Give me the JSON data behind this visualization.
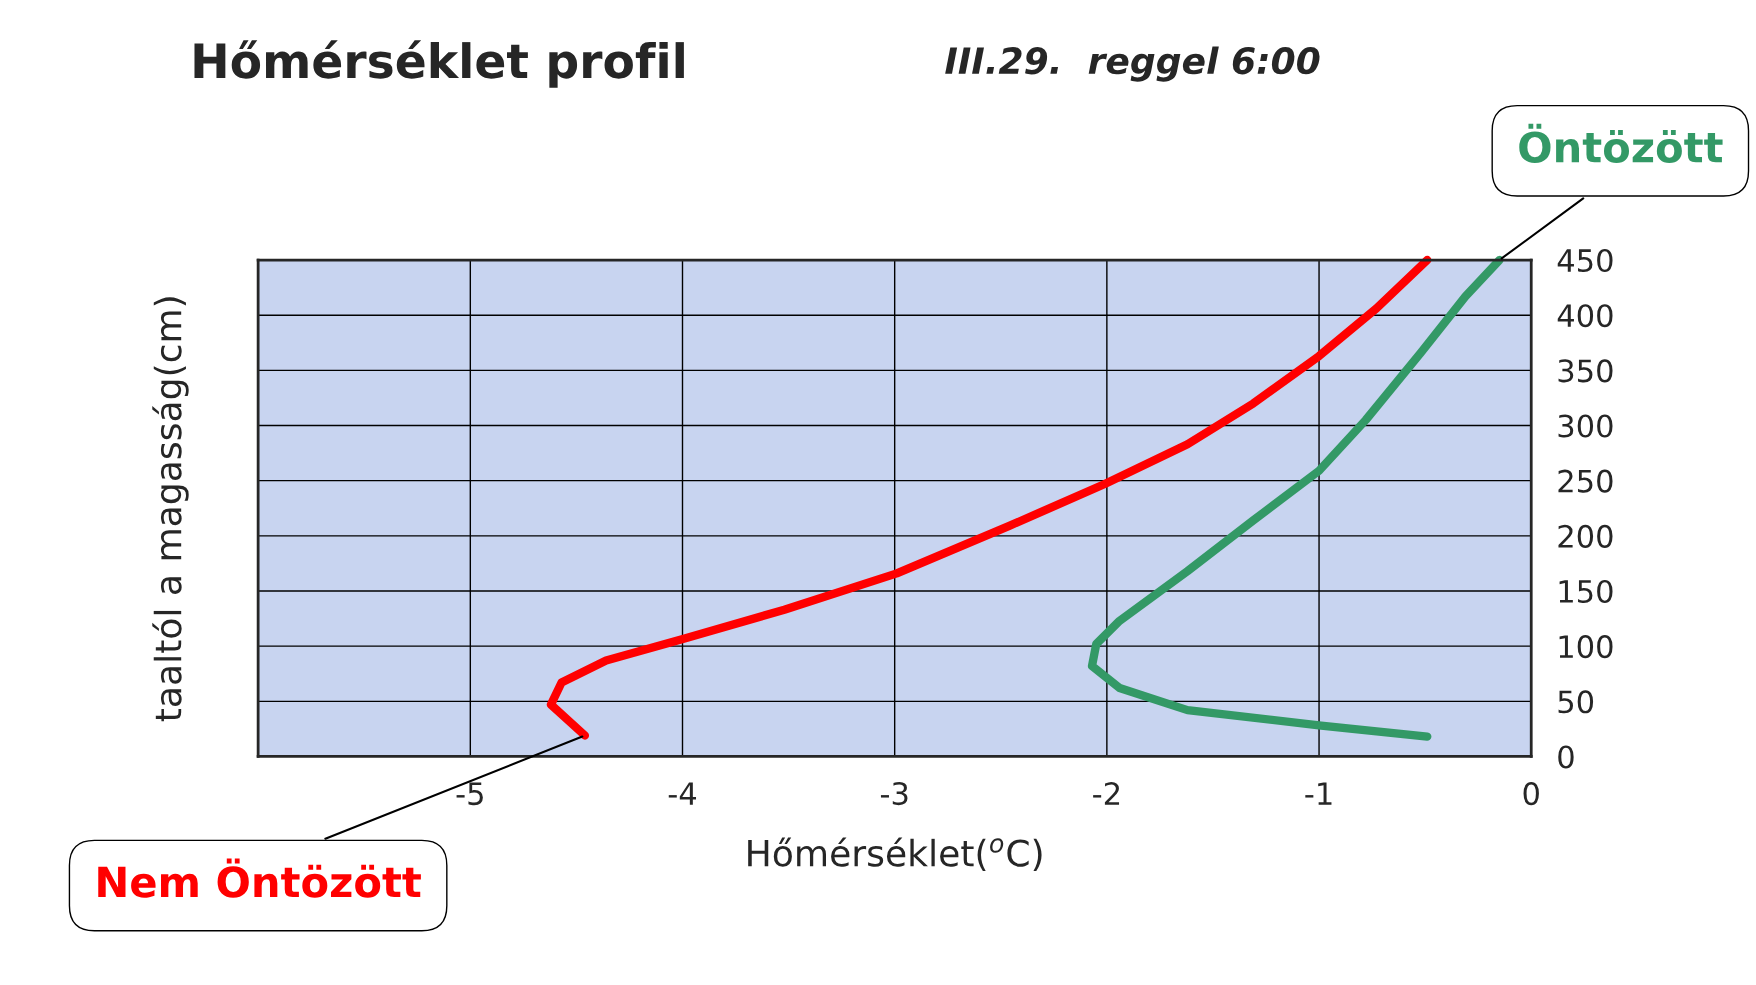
{
  "chart_data": {
    "type": "line",
    "title": "Hőmérséklet profil",
    "subtitle": "III.29.  reggel 6:00",
    "xlabel": "Hőmérséklet($^{o}$C)",
    "ylabel": "taaltól a magasság(cm)",
    "xlim": [
      -6,
      0
    ],
    "xticks": [
      -5,
      -4,
      -3,
      -2,
      -1,
      0
    ],
    "ylim": [
      0,
      450
    ],
    "yticks": [
      0,
      50,
      100,
      150,
      200,
      250,
      300,
      350,
      400,
      450
    ],
    "grid": true,
    "series": [
      {
        "name": "Nem Öntözött",
        "color": "#ff0000",
        "x": [
          -4.46,
          -4.62,
          -4.57,
          -4.36,
          -3.99,
          -3.52,
          -2.99,
          -2.46,
          -2.01,
          -1.62,
          -1.31,
          -1.0,
          -0.73,
          -0.49
        ],
        "values": [
          19,
          47,
          67,
          87,
          107,
          133,
          166,
          209,
          247,
          283,
          320,
          363,
          406,
          450
        ]
      },
      {
        "name": "Öntözött",
        "color": "#339966",
        "x": [
          -0.49,
          -0.99,
          -1.62,
          -1.94,
          -2.07,
          -2.05,
          -1.94,
          -1.62,
          -1.31,
          -1.0,
          -0.78,
          -0.52,
          -0.31,
          -0.15
        ],
        "values": [
          18,
          28,
          42,
          62,
          82,
          102,
          123,
          168,
          214,
          259,
          305,
          366,
          417,
          450
        ]
      }
    ]
  }
}
